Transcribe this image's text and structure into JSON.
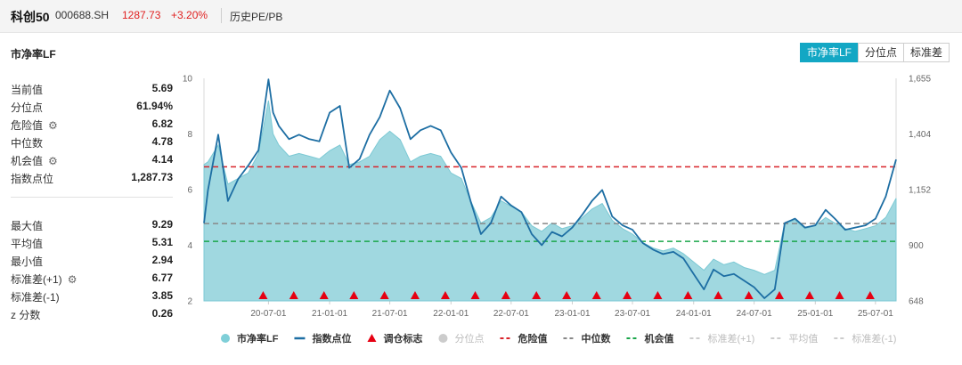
{
  "header": {
    "name": "科创50",
    "code": "000688.SH",
    "price": "1287.73",
    "change": "+3.20%",
    "subtitle": "历史PE/PB"
  },
  "panel": {
    "title": "市净率LF",
    "tabs": [
      {
        "label": "市净率LF",
        "active": true
      },
      {
        "label": "分位点",
        "active": false
      },
      {
        "label": "标准差",
        "active": false
      }
    ]
  },
  "stats": {
    "group1": [
      {
        "label": "当前值",
        "value": "5.69"
      },
      {
        "label": "分位点",
        "value": "61.94%"
      },
      {
        "label": "危险值",
        "value": "6.82",
        "icon": "gear-icon"
      },
      {
        "label": "中位数",
        "value": "4.78"
      },
      {
        "label": "机会值",
        "value": "4.14",
        "icon": "gear-icon"
      },
      {
        "label": "指数点位",
        "value": "1,287.73"
      }
    ],
    "group2": [
      {
        "label": "最大值",
        "value": "9.29"
      },
      {
        "label": "平均值",
        "value": "5.31"
      },
      {
        "label": "最小值",
        "value": "2.94"
      },
      {
        "label": "标准差(+1)",
        "value": "6.77",
        "icon": "gear-icon"
      },
      {
        "label": "标准差(-1)",
        "value": "3.85"
      },
      {
        "label": "z 分数",
        "value": "0.26"
      }
    ]
  },
  "chart_data": {
    "type": "area",
    "y_left": {
      "ticks": [
        "10",
        "8",
        "6",
        "4",
        "2"
      ],
      "range": [
        2,
        10
      ]
    },
    "y_right": {
      "ticks": [
        "1,655",
        "1,404",
        "1,152",
        "900",
        "648"
      ],
      "range": [
        648,
        1655
      ]
    },
    "x_ticks": [
      "20-07-01",
      "21-01-01",
      "21-07-01",
      "22-01-01",
      "22-07-01",
      "23-01-01",
      "23-07-01",
      "24-01-01",
      "24-07-01",
      "25-01-01",
      "25-07-01"
    ],
    "date_range": [
      "2019-12-20",
      "2025-09-01"
    ],
    "reference_lines": [
      {
        "name": "危险值",
        "value": 6.82,
        "color": "#d9232a",
        "style": "dashed"
      },
      {
        "name": "中位数",
        "value": 4.78,
        "color": "#888888",
        "style": "dashed"
      },
      {
        "name": "机会值",
        "value": 4.14,
        "color": "#1aa64a",
        "style": "dashed"
      }
    ],
    "series": [
      {
        "name": "市净率LF",
        "axis": "left",
        "color": "#8fd1db",
        "points": [
          [
            "2019-12-20",
            6.9
          ],
          [
            "2020-01-01",
            7.0
          ],
          [
            "2020-02-01",
            7.6
          ],
          [
            "2020-03-01",
            6.2
          ],
          [
            "2020-04-01",
            6.4
          ],
          [
            "2020-05-01",
            6.6
          ],
          [
            "2020-06-01",
            7.3
          ],
          [
            "2020-07-01",
            9.2
          ],
          [
            "2020-07-15",
            8.0
          ],
          [
            "2020-08-01",
            7.6
          ],
          [
            "2020-09-01",
            7.2
          ],
          [
            "2020-10-01",
            7.3
          ],
          [
            "2020-11-01",
            7.2
          ],
          [
            "2020-12-01",
            7.1
          ],
          [
            "2021-01-01",
            7.4
          ],
          [
            "2021-02-01",
            7.6
          ],
          [
            "2021-03-01",
            6.9
          ],
          [
            "2021-04-01",
            7.0
          ],
          [
            "2021-05-01",
            7.2
          ],
          [
            "2021-06-01",
            7.8
          ],
          [
            "2021-07-01",
            8.1
          ],
          [
            "2021-08-01",
            7.8
          ],
          [
            "2021-09-01",
            7.0
          ],
          [
            "2021-10-01",
            7.2
          ],
          [
            "2021-11-01",
            7.3
          ],
          [
            "2021-12-01",
            7.2
          ],
          [
            "2022-01-01",
            6.6
          ],
          [
            "2022-02-01",
            6.4
          ],
          [
            "2022-03-01",
            5.6
          ],
          [
            "2022-04-01",
            4.8
          ],
          [
            "2022-05-01",
            5.0
          ],
          [
            "2022-06-01",
            5.6
          ],
          [
            "2022-07-01",
            5.4
          ],
          [
            "2022-08-01",
            5.2
          ],
          [
            "2022-09-01",
            4.7
          ],
          [
            "2022-10-01",
            4.5
          ],
          [
            "2022-11-01",
            4.8
          ],
          [
            "2022-12-01",
            4.6
          ],
          [
            "2023-01-01",
            4.7
          ],
          [
            "2023-02-01",
            5.0
          ],
          [
            "2023-03-01",
            5.3
          ],
          [
            "2023-04-01",
            5.5
          ],
          [
            "2023-05-01",
            4.9
          ],
          [
            "2023-06-01",
            4.6
          ],
          [
            "2023-07-01",
            4.4
          ],
          [
            "2023-08-01",
            4.1
          ],
          [
            "2023-09-01",
            3.9
          ],
          [
            "2023-10-01",
            3.8
          ],
          [
            "2023-11-01",
            3.9
          ],
          [
            "2023-12-01",
            3.7
          ],
          [
            "2024-01-01",
            3.4
          ],
          [
            "2024-02-01",
            3.1
          ],
          [
            "2024-03-01",
            3.5
          ],
          [
            "2024-04-01",
            3.3
          ],
          [
            "2024-05-01",
            3.4
          ],
          [
            "2024-06-01",
            3.2
          ],
          [
            "2024-07-01",
            3.1
          ],
          [
            "2024-08-01",
            2.95
          ],
          [
            "2024-09-01",
            3.1
          ],
          [
            "2024-10-01",
            4.8
          ],
          [
            "2024-11-01",
            4.9
          ],
          [
            "2024-12-01",
            4.6
          ],
          [
            "2025-01-01",
            4.7
          ],
          [
            "2025-02-01",
            5.0
          ],
          [
            "2025-03-01",
            4.8
          ],
          [
            "2025-04-01",
            4.6
          ],
          [
            "2025-05-01",
            4.5
          ],
          [
            "2025-06-01",
            4.6
          ],
          [
            "2025-07-01",
            4.7
          ],
          [
            "2025-08-01",
            5.0
          ],
          [
            "2025-09-01",
            5.69
          ]
        ]
      },
      {
        "name": "指数点位",
        "axis": "right",
        "color": "#1d6ea3",
        "points": [
          [
            "2019-12-20",
            1000
          ],
          [
            "2020-01-01",
            1150
          ],
          [
            "2020-02-01",
            1400
          ],
          [
            "2020-03-01",
            1100
          ],
          [
            "2020-04-01",
            1200
          ],
          [
            "2020-05-01",
            1260
          ],
          [
            "2020-06-01",
            1330
          ],
          [
            "2020-07-01",
            1650
          ],
          [
            "2020-07-15",
            1500
          ],
          [
            "2020-08-01",
            1440
          ],
          [
            "2020-09-01",
            1380
          ],
          [
            "2020-10-01",
            1400
          ],
          [
            "2020-11-01",
            1380
          ],
          [
            "2020-12-01",
            1370
          ],
          [
            "2021-01-01",
            1500
          ],
          [
            "2021-02-01",
            1530
          ],
          [
            "2021-03-01",
            1250
          ],
          [
            "2021-04-01",
            1290
          ],
          [
            "2021-05-01",
            1400
          ],
          [
            "2021-06-01",
            1480
          ],
          [
            "2021-07-01",
            1600
          ],
          [
            "2021-08-01",
            1520
          ],
          [
            "2021-09-01",
            1380
          ],
          [
            "2021-10-01",
            1420
          ],
          [
            "2021-11-01",
            1440
          ],
          [
            "2021-12-01",
            1420
          ],
          [
            "2022-01-01",
            1320
          ],
          [
            "2022-02-01",
            1250
          ],
          [
            "2022-03-01",
            1100
          ],
          [
            "2022-04-01",
            950
          ],
          [
            "2022-05-01",
            1000
          ],
          [
            "2022-06-01",
            1120
          ],
          [
            "2022-07-01",
            1080
          ],
          [
            "2022-08-01",
            1050
          ],
          [
            "2022-09-01",
            950
          ],
          [
            "2022-10-01",
            900
          ],
          [
            "2022-11-01",
            960
          ],
          [
            "2022-12-01",
            940
          ],
          [
            "2023-01-01",
            980
          ],
          [
            "2023-02-01",
            1040
          ],
          [
            "2023-03-01",
            1100
          ],
          [
            "2023-04-01",
            1150
          ],
          [
            "2023-05-01",
            1030
          ],
          [
            "2023-06-01",
            990
          ],
          [
            "2023-07-01",
            970
          ],
          [
            "2023-08-01",
            910
          ],
          [
            "2023-09-01",
            880
          ],
          [
            "2023-10-01",
            860
          ],
          [
            "2023-11-01",
            870
          ],
          [
            "2023-12-01",
            840
          ],
          [
            "2024-01-01",
            770
          ],
          [
            "2024-02-01",
            700
          ],
          [
            "2024-03-01",
            790
          ],
          [
            "2024-04-01",
            760
          ],
          [
            "2024-05-01",
            770
          ],
          [
            "2024-06-01",
            740
          ],
          [
            "2024-07-01",
            710
          ],
          [
            "2024-08-01",
            660
          ],
          [
            "2024-09-01",
            700
          ],
          [
            "2024-10-01",
            1000
          ],
          [
            "2024-11-01",
            1020
          ],
          [
            "2024-12-01",
            980
          ],
          [
            "2025-01-01",
            990
          ],
          [
            "2025-02-01",
            1060
          ],
          [
            "2025-03-01",
            1020
          ],
          [
            "2025-04-01",
            970
          ],
          [
            "2025-05-01",
            980
          ],
          [
            "2025-06-01",
            990
          ],
          [
            "2025-07-01",
            1020
          ],
          [
            "2025-08-01",
            1120
          ],
          [
            "2025-09-01",
            1288
          ]
        ]
      }
    ],
    "rebalance_markers": {
      "name": "调仓标志",
      "color": "#e60012",
      "dates": [
        "2020-06-15",
        "2020-09-15",
        "2020-12-15",
        "2021-03-15",
        "2021-06-15",
        "2021-09-15",
        "2021-12-15",
        "2022-03-15",
        "2022-06-15",
        "2022-09-15",
        "2022-12-15",
        "2023-03-15",
        "2023-06-15",
        "2023-09-15",
        "2023-12-15",
        "2024-03-15",
        "2024-06-15",
        "2024-09-15",
        "2024-12-15",
        "2025-03-15",
        "2025-06-15"
      ]
    },
    "legend": [
      {
        "label": "市净率LF",
        "kind": "dot",
        "color": "#7fcfd8",
        "active": true
      },
      {
        "label": "指数点位",
        "kind": "line",
        "color": "#1d6ea3",
        "active": true
      },
      {
        "label": "调仓标志",
        "kind": "triangle",
        "color": "#e60012",
        "active": true
      },
      {
        "label": "分位点",
        "kind": "dot",
        "color": "#cccccc",
        "active": false
      },
      {
        "label": "危险值",
        "kind": "dash",
        "color": "#d9232a",
        "active": true
      },
      {
        "label": "中位数",
        "kind": "dash",
        "color": "#888888",
        "active": true
      },
      {
        "label": "机会值",
        "kind": "dash",
        "color": "#1aa64a",
        "active": true
      },
      {
        "label": "标准差(+1)",
        "kind": "dash",
        "color": "#cccccc",
        "active": false
      },
      {
        "label": "平均值",
        "kind": "dash",
        "color": "#cccccc",
        "active": false
      },
      {
        "label": "标准差(-1)",
        "kind": "dash",
        "color": "#cccccc",
        "active": false
      }
    ],
    "legend_position": "bottom",
    "grid": false
  }
}
